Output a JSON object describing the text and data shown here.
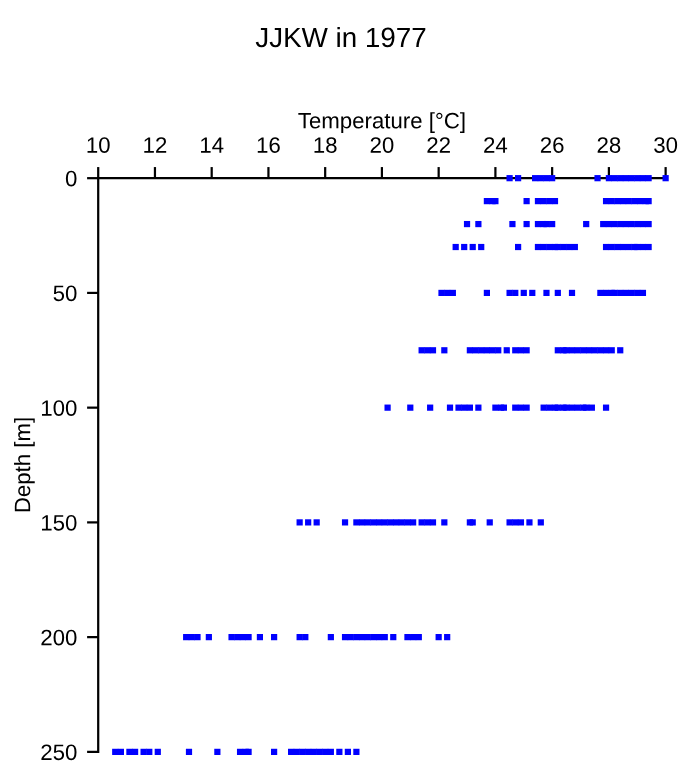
{
  "chart_data": {
    "type": "scatter",
    "title": "JJKW in 1977",
    "xlabel": "Temperature [°C]",
    "ylabel": "Depth [m]",
    "xlim": [
      10,
      30
    ],
    "xticks": [
      10,
      12,
      14,
      16,
      18,
      20,
      22,
      24,
      26,
      28,
      30
    ],
    "ylim": [
      250,
      0
    ],
    "yticks": [
      0,
      50,
      100,
      150,
      200,
      250
    ],
    "grid": false,
    "marker": "square",
    "series": [
      {
        "color": "#0000ff",
        "x": [
          24.5,
          24.8,
          25.4,
          25.6,
          25.8,
          26.0,
          27.6,
          28.0,
          28.2,
          28.4,
          28.6,
          28.8,
          29.0,
          29.2,
          29.4,
          30.0,
          23.7,
          23.9,
          24.0,
          25.1,
          25.5,
          25.7,
          25.9,
          26.1,
          27.9,
          28.1,
          28.3,
          28.5,
          28.7,
          28.9,
          29.1,
          29.3,
          29.4,
          23.0,
          23.4,
          24.6,
          25.1,
          25.5,
          25.7,
          25.8,
          26.0,
          27.2,
          27.8,
          28.0,
          28.2,
          28.4,
          28.6,
          28.8,
          29.0,
          29.2,
          29.4,
          22.6,
          22.9,
          23.2,
          23.5,
          24.8,
          25.5,
          25.7,
          25.9,
          26.1,
          26.2,
          26.4,
          26.6,
          26.8,
          27.9,
          28.1,
          28.3,
          28.5,
          28.7,
          28.9,
          29.0,
          29.2,
          29.4,
          22.1,
          22.3,
          22.5,
          23.7,
          24.5,
          24.7,
          25.0,
          25.3,
          25.8,
          26.2,
          26.7,
          27.7,
          27.9,
          28.1,
          28.2,
          28.4,
          28.6,
          28.8,
          29.0,
          29.2,
          21.4,
          21.6,
          21.8,
          22.2,
          23.1,
          23.3,
          23.5,
          23.7,
          23.9,
          24.1,
          24.4,
          24.7,
          24.9,
          25.1,
          26.2,
          26.4,
          26.5,
          26.7,
          26.9,
          27.1,
          27.3,
          27.5,
          27.7,
          27.9,
          28.1,
          28.4,
          20.2,
          21.0,
          21.7,
          22.4,
          22.7,
          22.9,
          23.1,
          23.4,
          24.0,
          24.2,
          24.3,
          24.7,
          24.9,
          25.1,
          25.7,
          25.9,
          26.1,
          26.2,
          26.4,
          26.5,
          26.7,
          26.9,
          27.1,
          27.2,
          27.4,
          27.9,
          17.1,
          17.4,
          17.7,
          18.7,
          19.1,
          19.3,
          19.5,
          19.7,
          19.9,
          20.1,
          20.3,
          20.5,
          20.7,
          20.9,
          21.1,
          21.4,
          21.6,
          21.8,
          22.2,
          23.1,
          23.2,
          23.8,
          24.5,
          24.7,
          24.9,
          25.2,
          25.6,
          13.1,
          13.3,
          13.5,
          13.9,
          14.7,
          14.9,
          15.1,
          15.3,
          15.7,
          16.2,
          17.1,
          17.3,
          18.2,
          18.7,
          18.9,
          19.1,
          19.3,
          19.5,
          19.7,
          19.9,
          20.1,
          20.4,
          20.9,
          21.1,
          21.3,
          22.0,
          22.3,
          10.6,
          10.8,
          11.1,
          11.3,
          11.6,
          11.8,
          12.1,
          13.2,
          14.2,
          15.0,
          15.2,
          15.3,
          16.2,
          16.8,
          17.0,
          17.2,
          17.4,
          17.6,
          17.8,
          18.0,
          18.2,
          18.5,
          18.8,
          19.1
        ],
        "values": [
          0,
          0,
          0,
          0,
          0,
          0,
          0,
          0,
          0,
          0,
          0,
          0,
          0,
          0,
          0,
          0,
          10,
          10,
          10,
          10,
          10,
          10,
          10,
          10,
          10,
          10,
          10,
          10,
          10,
          10,
          10,
          10,
          10,
          20,
          20,
          20,
          20,
          20,
          20,
          20,
          20,
          20,
          20,
          20,
          20,
          20,
          20,
          20,
          20,
          20,
          20,
          30,
          30,
          30,
          30,
          30,
          30,
          30,
          30,
          30,
          30,
          30,
          30,
          30,
          30,
          30,
          30,
          30,
          30,
          30,
          30,
          30,
          30,
          50,
          50,
          50,
          50,
          50,
          50,
          50,
          50,
          50,
          50,
          50,
          50,
          50,
          50,
          50,
          50,
          50,
          50,
          50,
          50,
          75,
          75,
          75,
          75,
          75,
          75,
          75,
          75,
          75,
          75,
          75,
          75,
          75,
          75,
          75,
          75,
          75,
          75,
          75,
          75,
          75,
          75,
          75,
          75,
          75,
          75,
          100,
          100,
          100,
          100,
          100,
          100,
          100,
          100,
          100,
          100,
          100,
          100,
          100,
          100,
          100,
          100,
          100,
          100,
          100,
          100,
          100,
          100,
          100,
          100,
          100,
          100,
          150,
          150,
          150,
          150,
          150,
          150,
          150,
          150,
          150,
          150,
          150,
          150,
          150,
          150,
          150,
          150,
          150,
          150,
          150,
          150,
          150,
          150,
          150,
          150,
          150,
          150,
          150,
          200,
          200,
          200,
          200,
          200,
          200,
          200,
          200,
          200,
          200,
          200,
          200,
          200,
          200,
          200,
          200,
          200,
          200,
          200,
          200,
          200,
          200,
          200,
          200,
          200,
          200,
          200,
          250,
          250,
          250,
          250,
          250,
          250,
          250,
          250,
          250,
          250,
          250,
          250,
          250,
          250,
          250,
          250,
          250,
          250,
          250,
          250,
          250,
          250,
          250,
          250
        ]
      }
    ]
  }
}
